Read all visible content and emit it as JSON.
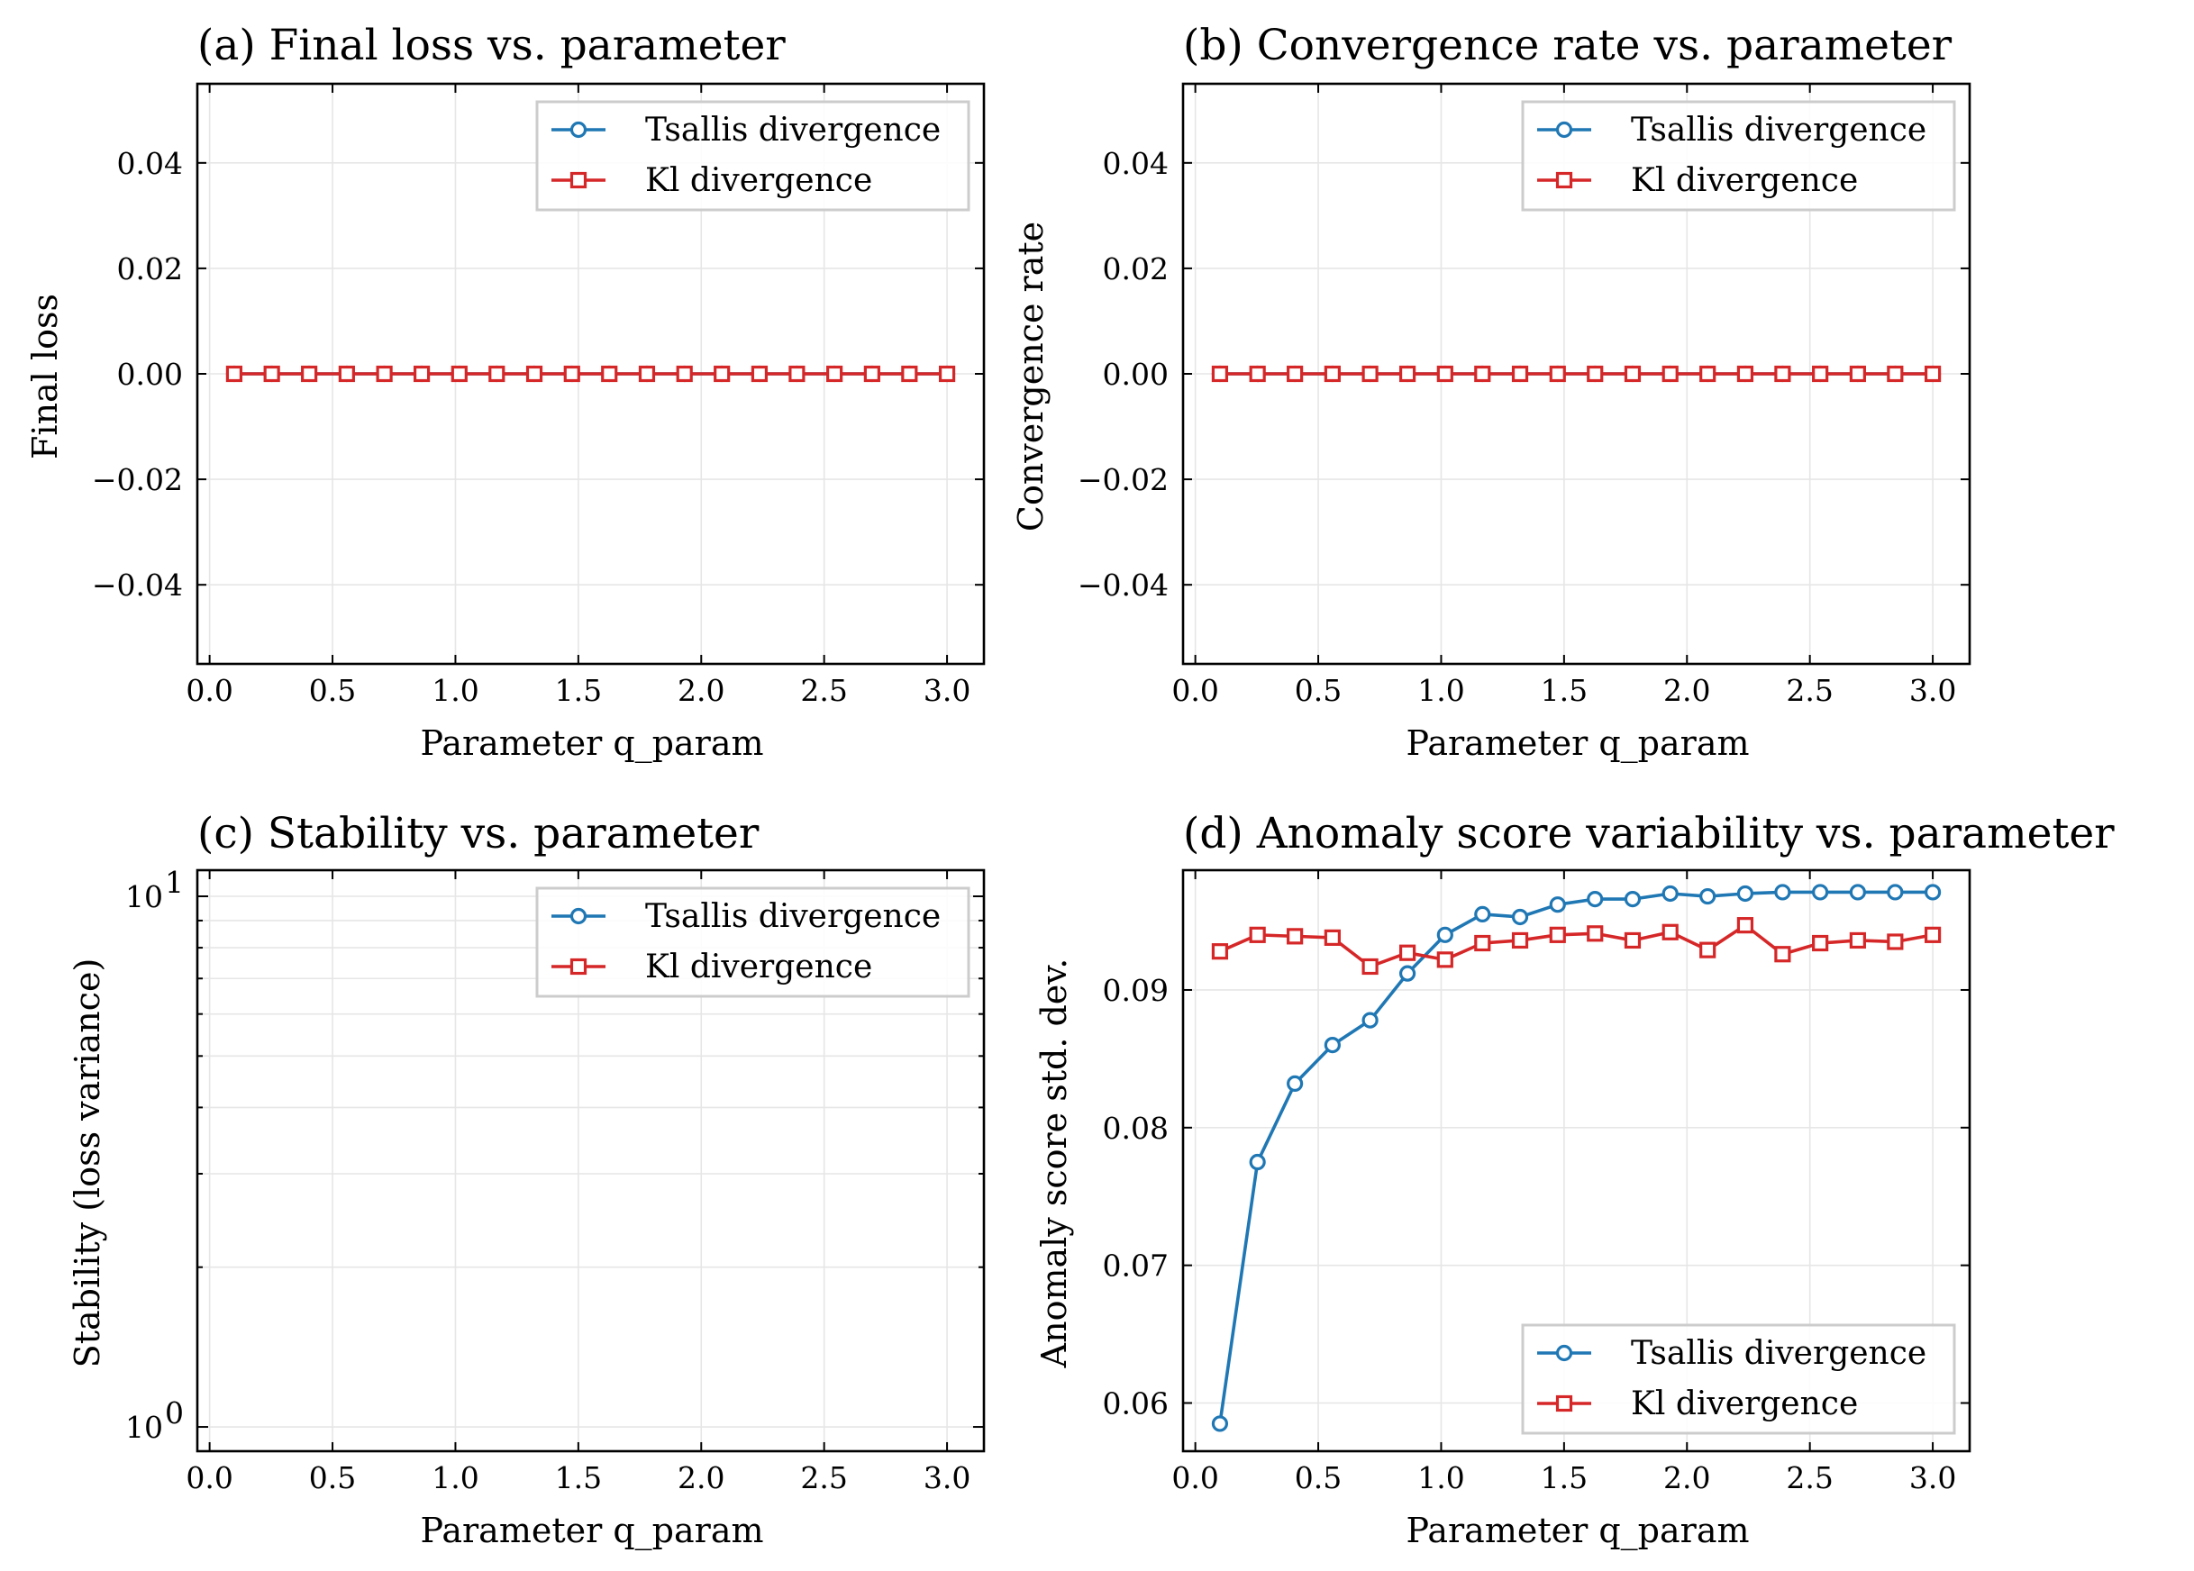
{
  "colors": {
    "tsallis": "#1f77b4",
    "kl": "#d62728"
  },
  "panels": [
    {
      "title": "(a) Final loss vs. parameter",
      "xlabel": "Parameter q_param",
      "ylabel": "Final loss",
      "xticks": [
        "0.0",
        "0.5",
        "1.0",
        "1.5",
        "2.0",
        "2.5",
        "3.0"
      ],
      "yticks": [
        "0.04",
        "0.02",
        "0.00",
        "−0.02",
        "−0.04"
      ],
      "legend": [
        "Tsallis divergence",
        "Kl divergence"
      ]
    },
    {
      "title": "(b) Convergence rate vs. parameter",
      "xlabel": "Parameter q_param",
      "ylabel": "Convergence rate",
      "xticks": [
        "0.0",
        "0.5",
        "1.0",
        "1.5",
        "2.0",
        "2.5",
        "3.0"
      ],
      "yticks": [
        "0.04",
        "0.02",
        "0.00",
        "−0.02",
        "−0.04"
      ],
      "legend": [
        "Tsallis divergence",
        "Kl divergence"
      ]
    },
    {
      "title": "(c) Stability vs. parameter",
      "xlabel": "Parameter q_param",
      "ylabel": "Stability (loss variance)",
      "xticks": [
        "0.0",
        "0.5",
        "1.0",
        "1.5",
        "2.0",
        "2.5",
        "3.0"
      ],
      "yticks": [
        "10",
        "10"
      ],
      "ytick_exponents": [
        "1",
        "0"
      ],
      "legend": [
        "Tsallis divergence",
        "Kl divergence"
      ]
    },
    {
      "title": "(d) Anomaly score variability vs. parameter",
      "xlabel": "Parameter q_param",
      "ylabel": "Anomaly score std. dev.",
      "xticks": [
        "0.0",
        "0.5",
        "1.0",
        "1.5",
        "2.0",
        "2.5",
        "3.0"
      ],
      "yticks": [
        "0.09",
        "0.08",
        "0.07",
        "0.06"
      ],
      "legend": [
        "Tsallis divergence",
        "Kl divergence"
      ]
    }
  ],
  "chart_data": [
    {
      "type": "line",
      "title": "(a) Final loss vs. parameter",
      "xlabel": "Parameter q_param",
      "ylabel": "Final loss",
      "xlim": [
        -0.05,
        3.15
      ],
      "ylim": [
        -0.055,
        0.055
      ],
      "grid": true,
      "legend_position": "upper right",
      "x": [
        0.1,
        0.253,
        0.405,
        0.558,
        0.711,
        0.863,
        1.016,
        1.168,
        1.321,
        1.474,
        1.626,
        1.779,
        1.932,
        2.084,
        2.237,
        2.389,
        2.542,
        2.695,
        2.847,
        3.0
      ],
      "series": [
        {
          "name": "Tsallis divergence",
          "marker": "circle",
          "values": [
            0,
            0,
            0,
            0,
            0,
            0,
            0,
            0,
            0,
            0,
            0,
            0,
            0,
            0,
            0,
            0,
            0,
            0,
            0,
            0
          ]
        },
        {
          "name": "Kl divergence",
          "marker": "square",
          "values": [
            0,
            0,
            0,
            0,
            0,
            0,
            0,
            0,
            0,
            0,
            0,
            0,
            0,
            0,
            0,
            0,
            0,
            0,
            0,
            0
          ]
        }
      ]
    },
    {
      "type": "line",
      "title": "(b) Convergence rate vs. parameter",
      "xlabel": "Parameter q_param",
      "ylabel": "Convergence rate",
      "xlim": [
        -0.05,
        3.15
      ],
      "ylim": [
        -0.055,
        0.055
      ],
      "grid": true,
      "legend_position": "upper right",
      "x": [
        0.1,
        0.253,
        0.405,
        0.558,
        0.711,
        0.863,
        1.016,
        1.168,
        1.321,
        1.474,
        1.626,
        1.779,
        1.932,
        2.084,
        2.237,
        2.389,
        2.542,
        2.695,
        2.847,
        3.0
      ],
      "series": [
        {
          "name": "Tsallis divergence",
          "marker": "circle",
          "values": [
            0,
            0,
            0,
            0,
            0,
            0,
            0,
            0,
            0,
            0,
            0,
            0,
            0,
            0,
            0,
            0,
            0,
            0,
            0,
            0
          ]
        },
        {
          "name": "Kl divergence",
          "marker": "square",
          "values": [
            0,
            0,
            0,
            0,
            0,
            0,
            0,
            0,
            0,
            0,
            0,
            0,
            0,
            0,
            0,
            0,
            0,
            0,
            0,
            0
          ]
        }
      ]
    },
    {
      "type": "line",
      "title": "(c) Stability vs. parameter",
      "xlabel": "Parameter q_param",
      "ylabel": "Stability (loss variance)",
      "xlim": [
        -0.05,
        3.15
      ],
      "ylim": [
        0.9,
        11.2
      ],
      "yscale": "log",
      "grid": true,
      "legend_position": "upper right",
      "x": [],
      "series": [
        {
          "name": "Tsallis divergence",
          "marker": "circle",
          "values": []
        },
        {
          "name": "Kl divergence",
          "marker": "square",
          "values": []
        }
      ]
    },
    {
      "type": "line",
      "title": "(d) Anomaly score variability vs. parameter",
      "xlabel": "Parameter q_param",
      "ylabel": "Anomaly score std. dev.",
      "xlim": [
        -0.05,
        3.15
      ],
      "ylim": [
        0.0565,
        0.0987
      ],
      "grid": true,
      "legend_position": "lower right",
      "x": [
        0.1,
        0.253,
        0.405,
        0.558,
        0.711,
        0.863,
        1.016,
        1.168,
        1.321,
        1.474,
        1.626,
        1.779,
        1.932,
        2.084,
        2.237,
        2.389,
        2.542,
        2.695,
        2.847,
        3.0
      ],
      "series": [
        {
          "name": "Tsallis divergence",
          "marker": "circle",
          "values": [
            0.0585,
            0.0775,
            0.0832,
            0.086,
            0.0878,
            0.0912,
            0.094,
            0.0955,
            0.0953,
            0.0962,
            0.0966,
            0.0966,
            0.097,
            0.0968,
            0.097,
            0.0971,
            0.0971,
            0.0971,
            0.0971,
            0.0971
          ]
        },
        {
          "name": "Kl divergence",
          "marker": "square",
          "values": [
            0.0928,
            0.094,
            0.0939,
            0.0938,
            0.0917,
            0.0927,
            0.0922,
            0.0934,
            0.0936,
            0.094,
            0.0941,
            0.0936,
            0.0942,
            0.0929,
            0.0947,
            0.0926,
            0.0934,
            0.0936,
            0.0935,
            0.094
          ]
        }
      ]
    }
  ]
}
